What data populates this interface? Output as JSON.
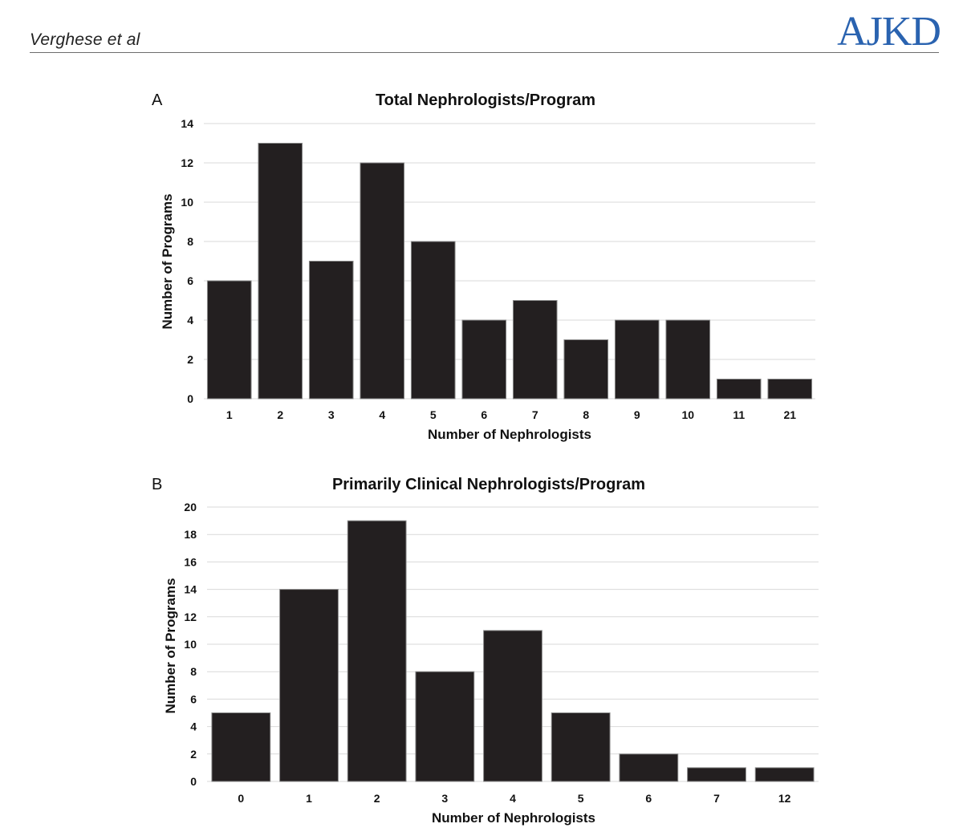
{
  "header": {
    "authors": "Verghese et al",
    "journal": "AJKD"
  },
  "chart_data": [
    {
      "type": "bar",
      "panel": "A",
      "title": "Total Nephrologists/Program",
      "xlabel": "Number of Nephrologists",
      "ylabel": "Number of Programs",
      "categories": [
        "1",
        "2",
        "3",
        "4",
        "5",
        "6",
        "7",
        "8",
        "9",
        "10",
        "11",
        "21"
      ],
      "values": [
        6,
        13,
        7,
        12,
        8,
        4,
        5,
        3,
        4,
        4,
        1,
        1
      ],
      "ylim": [
        0,
        14
      ],
      "yticks": [
        0,
        2,
        4,
        6,
        8,
        10,
        12,
        14
      ],
      "grid": true,
      "bar_color": "#231f20"
    },
    {
      "type": "bar",
      "panel": "B",
      "title": "Primarily Clinical Nephrologists/Program",
      "xlabel": "Number of Nephrologists",
      "ylabel": "Number of Programs",
      "categories": [
        "0",
        "1",
        "2",
        "3",
        "4",
        "5",
        "6",
        "7",
        "12"
      ],
      "values": [
        5,
        14,
        19,
        8,
        11,
        5,
        2,
        1,
        1
      ],
      "ylim": [
        0,
        20
      ],
      "yticks": [
        0,
        2,
        4,
        6,
        8,
        10,
        12,
        14,
        16,
        18,
        20
      ],
      "grid": true,
      "bar_color": "#231f20"
    }
  ]
}
